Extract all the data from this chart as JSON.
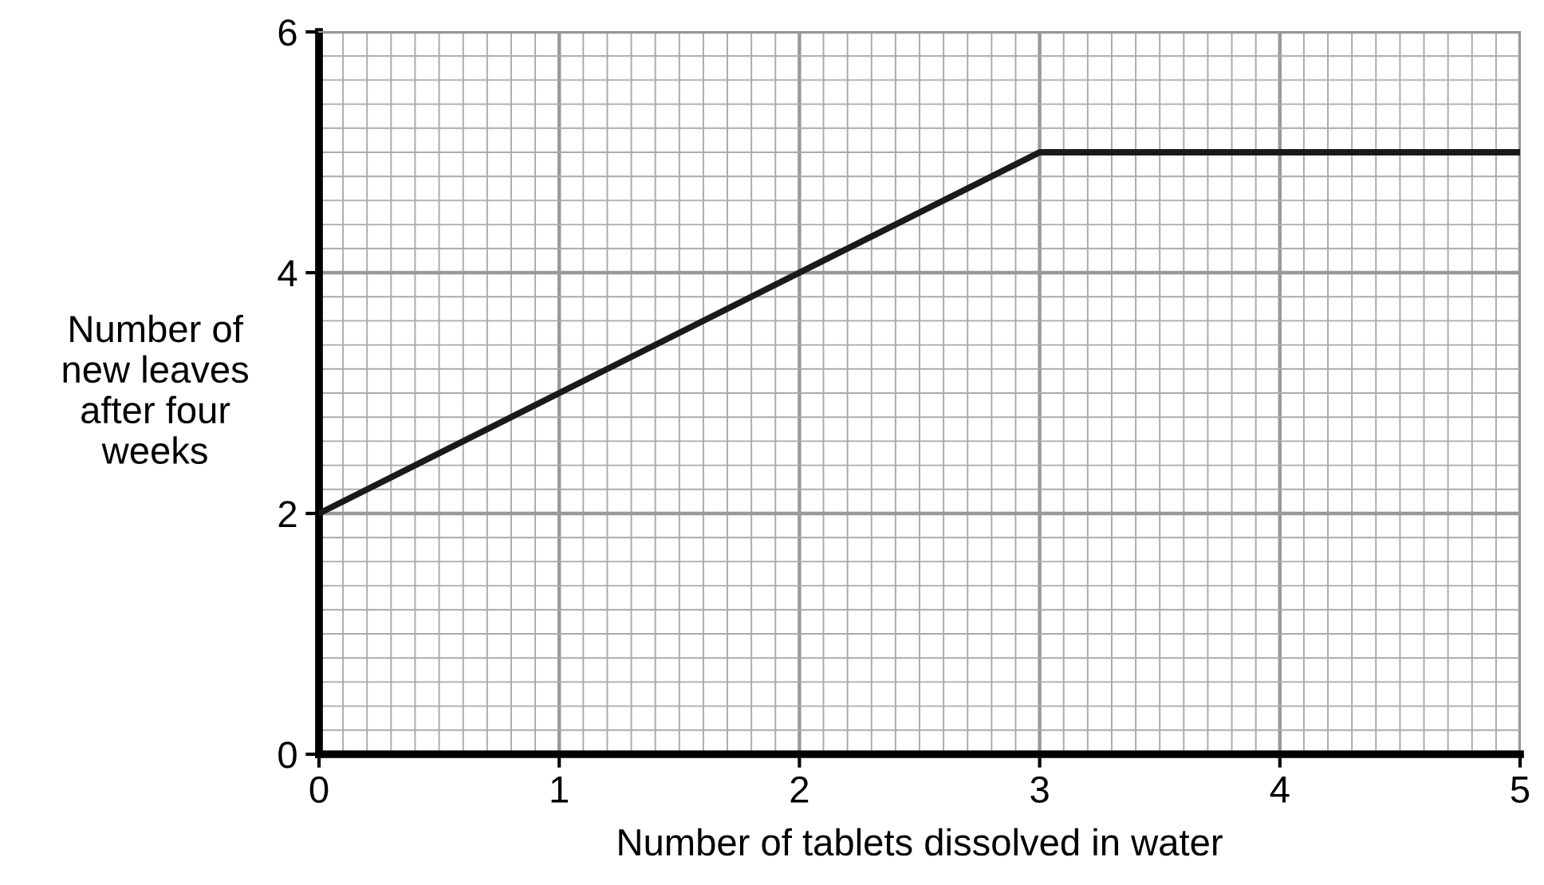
{
  "chart_data": {
    "type": "line",
    "xlabel": "Number of tablets dissolved in water",
    "ylabel": "Number of\nnew leaves\nafter four\nweeks",
    "x": [
      0,
      3,
      5
    ],
    "series": [
      {
        "color": "#1a1a1a",
        "values": [
          2,
          5,
          5
        ]
      }
    ],
    "xlim": [
      0,
      5
    ],
    "ylim": [
      0,
      6
    ],
    "xticks": [
      0,
      1,
      2,
      3,
      4,
      5
    ],
    "yticks": [
      0,
      2,
      4,
      6
    ],
    "grid": true,
    "marker": "none",
    "line_style": "solid"
  }
}
